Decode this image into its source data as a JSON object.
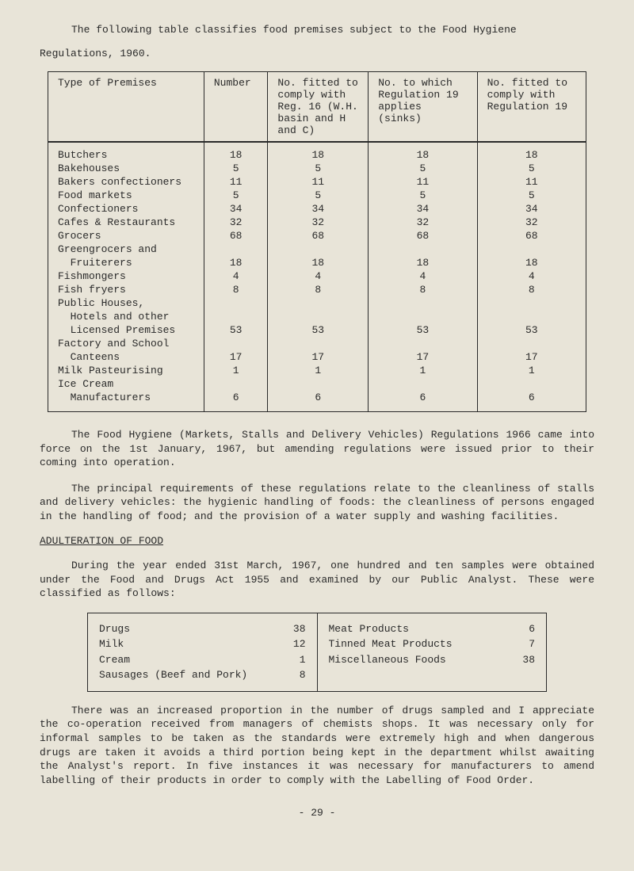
{
  "intro": {
    "line1": "The following table classifies food premises subject to the Food Hygiene",
    "line2": "Regulations, 1960."
  },
  "mainTable": {
    "headers": {
      "col1": "Type of Premises",
      "col2": "Number",
      "col3": "No. fitted to comply with Reg. 16 (W.H. basin and H and C)",
      "col4": "No. to which Regulation 19 applies (sinks)",
      "col5": "No. fitted to comply with Regulation 19"
    },
    "rows": [
      {
        "type": "Butchers",
        "c2": "18",
        "c3": "18",
        "c4": "18",
        "c5": "18"
      },
      {
        "type": "Bakehouses",
        "c2": "5",
        "c3": "5",
        "c4": "5",
        "c5": "5"
      },
      {
        "type": "Bakers confectioners",
        "c2": "11",
        "c3": "11",
        "c4": "11",
        "c5": "11"
      },
      {
        "type": "Food markets",
        "c2": "5",
        "c3": "5",
        "c4": "5",
        "c5": "5"
      },
      {
        "type": "Confectioners",
        "c2": "34",
        "c3": "34",
        "c4": "34",
        "c5": "34"
      },
      {
        "type": "Cafes & Restaurants",
        "c2": "32",
        "c3": "32",
        "c4": "32",
        "c5": "32"
      },
      {
        "type": "Grocers",
        "c2": "68",
        "c3": "68",
        "c4": "68",
        "c5": "68"
      },
      {
        "type": "Greengrocers and",
        "c2": "",
        "c3": "",
        "c4": "",
        "c5": ""
      },
      {
        "type": "  Fruiterers",
        "c2": "18",
        "c3": "18",
        "c4": "18",
        "c5": "18"
      },
      {
        "type": "Fishmongers",
        "c2": "4",
        "c3": "4",
        "c4": "4",
        "c5": "4"
      },
      {
        "type": "Fish fryers",
        "c2": "8",
        "c3": "8",
        "c4": "8",
        "c5": "8"
      },
      {
        "type": "Public Houses,",
        "c2": "",
        "c3": "",
        "c4": "",
        "c5": ""
      },
      {
        "type": "  Hotels and other",
        "c2": "",
        "c3": "",
        "c4": "",
        "c5": ""
      },
      {
        "type": "  Licensed Premises",
        "c2": "53",
        "c3": "53",
        "c4": "53",
        "c5": "53"
      },
      {
        "type": "Factory and School",
        "c2": "",
        "c3": "",
        "c4": "",
        "c5": ""
      },
      {
        "type": "  Canteens",
        "c2": "17",
        "c3": "17",
        "c4": "17",
        "c5": "17"
      },
      {
        "type": "Milk Pasteurising",
        "c2": "1",
        "c3": "1",
        "c4": "1",
        "c5": "1"
      },
      {
        "type": "Ice Cream",
        "c2": "",
        "c3": "",
        "c4": "",
        "c5": ""
      },
      {
        "type": "  Manufacturers",
        "c2": "6",
        "c3": "6",
        "c4": "6",
        "c5": "6"
      }
    ]
  },
  "para1": "The Food Hygiene (Markets, Stalls and Delivery Vehicles) Regulations 1966 came into force on the 1st January, 1967, but amending regulations were issued prior to their coming into operation.",
  "para2": "The principal requirements of these regulations relate to the cleanliness of stalls and delivery vehicles: the hygienic handling of foods: the cleanliness of persons engaged in the handling of food; and the provision of a water supply and washing facilities.",
  "sectionHeader": "ADULTERATION OF FOOD",
  "para3": "During the year ended 31st March, 1967, one hundred and ten samples were obtained under the Food and Drugs Act 1955 and examined by our Public Analyst.  These were classified as follows:",
  "smallTable": {
    "left": [
      {
        "label": "Drugs",
        "value": "38"
      },
      {
        "label": "Milk",
        "value": "12"
      },
      {
        "label": "Cream",
        "value": "1"
      },
      {
        "label": "Sausages (Beef and Pork)",
        "value": "8"
      }
    ],
    "right": [
      {
        "label": "Meat Products",
        "value": "6"
      },
      {
        "label": "Tinned Meat Products",
        "value": "7"
      },
      {
        "label": "Miscellaneous Foods",
        "value": "38"
      }
    ]
  },
  "para4": "There was an increased proportion in the number of drugs sampled and I appreciate the co-operation received from managers of chemists shops.  It was necessary only for informal samples to be taken as the standards were extremely high and when dangerous drugs are taken it avoids a third portion being kept in the department whilst awaiting the Analyst's report.  In five instances it was necessary for manufacturers to amend labelling of their products in order to comply with the Labelling of Food Order.",
  "pageNumber": "- 29 -"
}
